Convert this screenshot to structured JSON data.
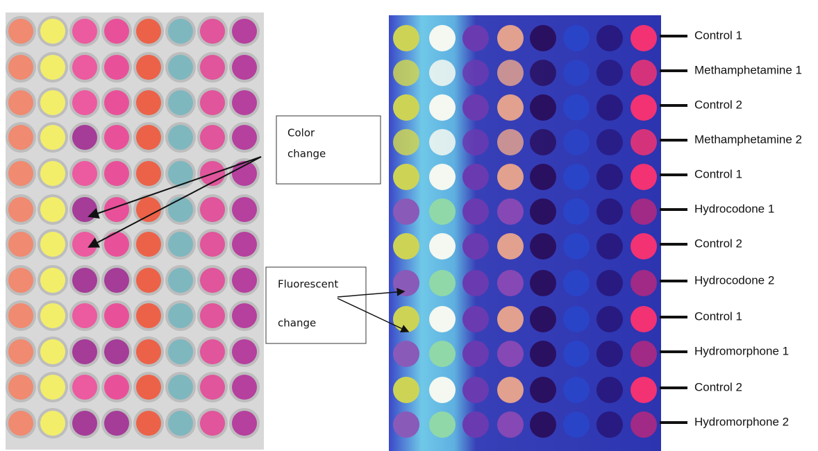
{
  "row_labels": [
    "Control 1",
    "Methamphetamine 1",
    "Control 2",
    "Methamphetamine 2",
    "Control 1",
    "Hydrocodone 1",
    "Control 2",
    "Hydrocodone 2",
    "Control 1",
    "Hydromorphone 1",
    "Control 2",
    "Hydromorphone 2"
  ],
  "callouts": {
    "color_change": [
      "Color",
      "change"
    ],
    "fluorescent_change": [
      "Fluorescent",
      "change"
    ]
  }
}
